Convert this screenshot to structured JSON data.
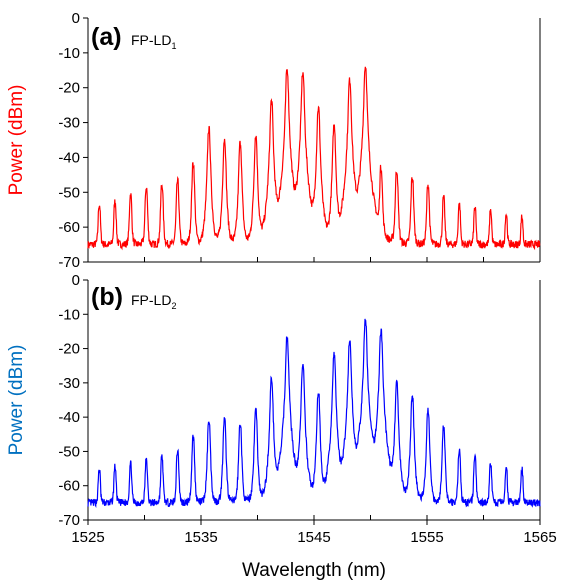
{
  "chart_data": [
    {
      "type": "line",
      "panel_label": "(a)",
      "device_label": "FP-LD",
      "device_sub": "1",
      "ylabel": "Power (dBm)",
      "ylabel_color": "#ff0000",
      "series_color": "#ff0000",
      "xlim": [
        1525,
        1565
      ],
      "ylim": [
        -70,
        0
      ],
      "yticks": [
        "0",
        "-10",
        "-20",
        "-30",
        "-40",
        "-50",
        "-60",
        "-70"
      ],
      "noise_floor": -65,
      "modes": {
        "x": [
          1526.0,
          1527.39,
          1528.77,
          1530.16,
          1531.54,
          1532.93,
          1534.31,
          1535.7,
          1537.08,
          1538.47,
          1539.85,
          1541.24,
          1542.62,
          1544.01,
          1545.39,
          1546.78,
          1548.16,
          1549.55,
          1550.93,
          1552.32,
          1553.7,
          1555.09,
          1556.47,
          1557.86,
          1559.24,
          1560.63,
          1562.01,
          1563.4
        ],
        "y": [
          -54,
          -53,
          -51,
          -49,
          -48,
          -47,
          -42,
          -32,
          -35,
          -36,
          -34,
          -24,
          -15,
          -16,
          -26,
          -31,
          -18,
          -14,
          -43,
          -44,
          -46,
          -48,
          -52,
          -54,
          -55,
          -56,
          -57,
          -58
        ]
      }
    },
    {
      "type": "line",
      "panel_label": "(b)",
      "device_label": "FP-LD",
      "device_sub": "2",
      "ylabel": "Power (dBm)",
      "ylabel_color": "#0070c0",
      "series_color": "#0000ff",
      "xlabel": "Wavelength (nm)",
      "xlim": [
        1525,
        1565
      ],
      "ylim": [
        -70,
        0
      ],
      "xticks": [
        "1525",
        "1535",
        "1545",
        "1555",
        "1565"
      ],
      "yticks": [
        "0",
        "-10",
        "-20",
        "-30",
        "-40",
        "-50",
        "-60",
        "-70"
      ],
      "noise_floor": -65,
      "modes": {
        "x": [
          1526.0,
          1527.39,
          1528.77,
          1530.16,
          1531.54,
          1532.93,
          1534.31,
          1535.7,
          1537.08,
          1538.47,
          1539.85,
          1541.24,
          1542.62,
          1544.01,
          1545.39,
          1546.78,
          1548.16,
          1549.55,
          1550.93,
          1552.32,
          1553.7,
          1555.09,
          1556.47,
          1557.86,
          1559.24,
          1560.63,
          1562.01,
          1563.4
        ],
        "y": [
          -56,
          -55,
          -54,
          -53,
          -52,
          -50,
          -46,
          -41,
          -41,
          -42,
          -38,
          -29,
          -17,
          -25,
          -33,
          -22,
          -18,
          -12,
          -15,
          -30,
          -34,
          -38,
          -43,
          -50,
          -52,
          -54,
          -55,
          -56
        ]
      }
    }
  ]
}
